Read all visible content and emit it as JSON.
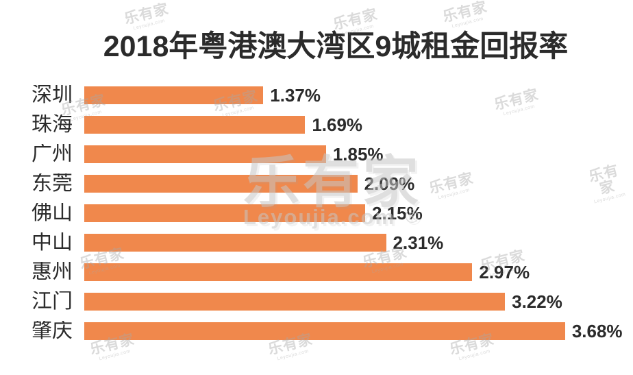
{
  "title": "2018年粤港澳大湾区9城租金回报率",
  "watermark": {
    "brand": "乐有家",
    "domain": "Leyoujia.com",
    "registered": "®"
  },
  "colors": {
    "bar": "#F0884C",
    "text": "#2B2B2B",
    "watermark_gray": "#C6C6C6",
    "background": "#FFFFFF"
  },
  "chart_data": {
    "type": "bar",
    "orientation": "horizontal",
    "title": "2018年粤港澳大湾区9城租金回报率",
    "categories": [
      "深圳",
      "珠海",
      "广州",
      "东莞",
      "佛山",
      "中山",
      "惠州",
      "江门",
      "肇庆"
    ],
    "values": [
      1.37,
      1.69,
      1.85,
      2.09,
      2.15,
      2.31,
      2.97,
      3.22,
      3.68
    ],
    "value_labels": [
      "1.37%",
      "1.69%",
      "1.85%",
      "2.09%",
      "2.15%",
      "2.31%",
      "2.97%",
      "3.22%",
      "3.68%"
    ],
    "sort_order": "ascending",
    "xlabel": "",
    "ylabel": "",
    "xlim": [
      0,
      4.2
    ],
    "grid": false,
    "legend": false,
    "bar_color": "#F0884C",
    "value_label_position": "outside-right"
  }
}
